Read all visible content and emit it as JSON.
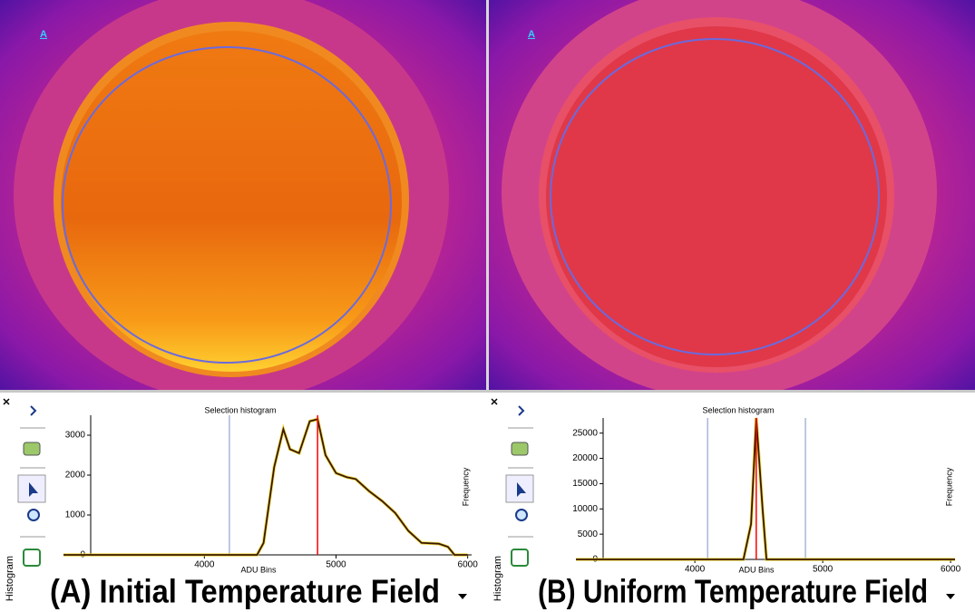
{
  "panels": [
    {
      "marker": "A",
      "caption": "(A) Initial Temperature Field",
      "side_tab": "Histogram",
      "histogram": {
        "title": "Selection histogram",
        "x_label": "ADU Bins",
        "y_label": "Frequency",
        "xlim": [
          2930,
          6030
        ],
        "ylim": [
          0,
          3500
        ],
        "xticks": [
          4000,
          5000,
          6000
        ],
        "yticks": [
          0,
          1000,
          2000,
          3000
        ],
        "series": {
          "color": "#3a1800",
          "x": [
            2930,
            4400,
            4450,
            4530,
            4600,
            4650,
            4720,
            4800,
            4860,
            4920,
            5000,
            5080,
            5150,
            5250,
            5350,
            5450,
            5550,
            5650,
            5780,
            5850,
            5900,
            6000
          ],
          "values": [
            0,
            0,
            300,
            2200,
            3150,
            2650,
            2550,
            3350,
            3400,
            2500,
            2050,
            1950,
            1900,
            1600,
            1350,
            1050,
            600,
            300,
            280,
            200,
            0,
            0
          ]
        },
        "peak_marker": 4860,
        "peak_color": "#ff0000",
        "selection_lines": [
          4190
        ],
        "selection_color": "#a8b8d8"
      }
    },
    {
      "marker": "A",
      "caption": "(B) Uniform Temperature Field",
      "side_tab": "Histogram",
      "histogram": {
        "title": "Selection histogram",
        "x_label": "ADU Bins",
        "y_label": "Frequency",
        "xlim": [
          3070,
          6035
        ],
        "ylim": [
          0,
          28000
        ],
        "xticks": [
          4000,
          5000,
          6000
        ],
        "yticks": [
          0,
          5000,
          10000,
          15000,
          20000,
          25000
        ],
        "series": {
          "color": "#3a1800",
          "x": [
            3070,
            4380,
            4440,
            4480,
            4530,
            4560,
            6035
          ],
          "values": [
            0,
            0,
            7000,
            28000,
            10000,
            0,
            0
          ]
        },
        "peak_marker": 4480,
        "peak_color": "#ff0000",
        "selection_lines": [
          4100,
          4865
        ],
        "selection_color": "#a8b8d8"
      }
    }
  ]
}
